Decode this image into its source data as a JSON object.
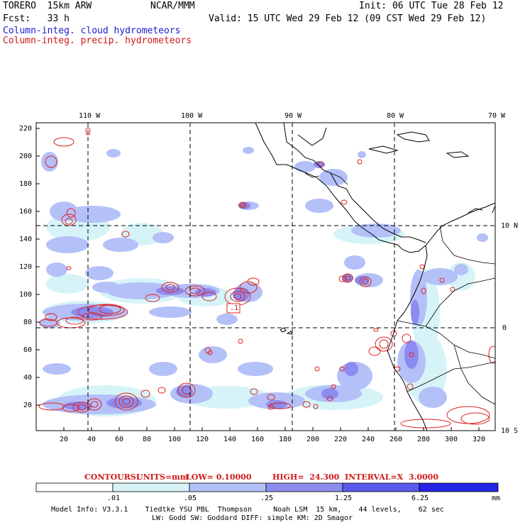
{
  "header": {
    "model": "TORERO  15km ARW",
    "center": "NCAR/MMM",
    "init": "Init: 06 UTC Tue 28 Feb 12",
    "fcst": "Fcst:   33 h",
    "valid": "Valid: 15 UTC Wed 29 Feb 12 (09 CST Wed 29 Feb 12)",
    "field1": "Column-integ. cloud hydrometeors",
    "field2": "Column-integ. precip. hydrometeors"
  },
  "map": {
    "top_lon_labels": [
      "110 W",
      "100 W",
      "90 W",
      "80 W",
      "70 W"
    ],
    "right_lat_labels": [
      "10 N",
      "0",
      "10 S"
    ],
    "y_ticks": [
      "220",
      "200",
      "180",
      "160",
      "140",
      "120",
      "100",
      "80",
      "60",
      "40",
      "20"
    ],
    "x_ticks": [
      "20",
      "40",
      "60",
      "80",
      "100",
      "120",
      "140",
      "160",
      "180",
      "200",
      "220",
      "240",
      "260",
      "280",
      "300",
      "320"
    ],
    "high_label": ".1"
  },
  "contours": {
    "title": "CONTOURS:",
    "units": "UNITS=mm",
    "low": "LOW= 0.10000",
    "high": "HIGH=  24.300",
    "interval": "INTERVAL=X  3.0000"
  },
  "colorbar": {
    "labels": [
      ".01",
      ".05",
      ".25",
      "1.25",
      "6.25"
    ],
    "unit": "mm",
    "colors": [
      "#ffffff",
      "#d6f4f8",
      "#b4c0f8",
      "#8c8cf0",
      "#5a5aee",
      "#2424e6"
    ]
  },
  "footer": {
    "line1": "Model Info: V3.3.1    Tiedtke YSU PBL  Thompson     Noah LSM  15 km,    44 levels,    62 sec",
    "line2": "LW: Godd SW: Goddard DIFF: simple KM: 2D Smagor"
  }
}
